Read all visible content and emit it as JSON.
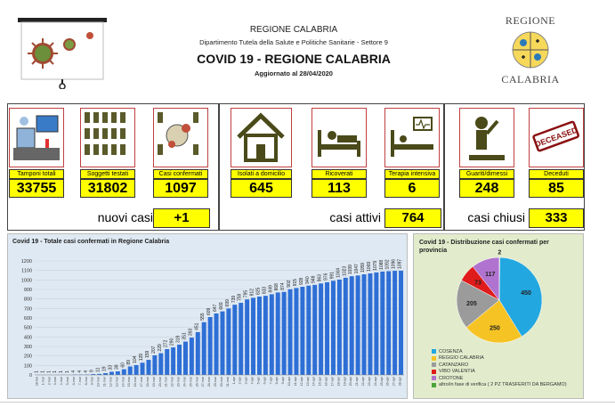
{
  "header": {
    "region": "REGIONE CALABRIA",
    "department": "Dipartimento Tutela della Salute e Politiche Sanitarie - Settore 9",
    "title": "COVID 19 - REGIONE CALABRIA",
    "updated": "Aggiornato al  28/04/2020",
    "logo_top": "REGIONE",
    "logo_bottom": "CALABRIA"
  },
  "stats": [
    {
      "label": "Tamponi totali",
      "value": "33755",
      "icon": "lab-computer-icon"
    },
    {
      "label": "Soggetti testati",
      "value": "31802",
      "icon": "people-tested-icon"
    },
    {
      "label": "Casi confermati",
      "value": "1097",
      "icon": "confirmed-cases-icon"
    },
    {
      "label": "Isolati a domicilio",
      "value": "645",
      "icon": "house-icon"
    },
    {
      "label": "Ricoverati",
      "value": "113",
      "icon": "hospital-bed-icon"
    },
    {
      "label": "Terapia intensiva",
      "value": "6",
      "icon": "intensive-care-icon"
    },
    {
      "label": "Guariti/dimessi",
      "value": "248",
      "icon": "recovered-person-icon"
    },
    {
      "label": "Deceduti",
      "value": "85",
      "icon": "deceased-stamp-icon"
    }
  ],
  "summary": {
    "new_label": "nuovi casi",
    "new_value": "+1",
    "active_label": "casi attivi",
    "active_value": "764",
    "closed_label": "casi chiusi",
    "closed_value": "333"
  },
  "colors": {
    "highlight": "#ffff00",
    "bar": "#2e6fd6",
    "chart_bg": "#dfe9f3",
    "pie_bg": "#e2eccc"
  },
  "chart_data": [
    {
      "type": "bar",
      "title": "Covid 19 - Totale casi confermati in Regione Calabria",
      "ylim": [
        0,
        1200
      ],
      "yticks": [
        0,
        100,
        200,
        300,
        400,
        500,
        600,
        700,
        800,
        900,
        1000,
        1100,
        1200
      ],
      "grid": true,
      "categories": [
        "28-feb",
        "1-mar",
        "2-mar",
        "3-mar",
        "4-mar",
        "5-mar",
        "6-mar",
        "7-mar",
        "8-mar",
        "9-mar",
        "10-mar",
        "11-mar",
        "12-mar",
        "13-mar",
        "14-mar",
        "15-mar",
        "16-mar",
        "17-mar",
        "18-mar",
        "19-mar",
        "20-mar",
        "21-mar",
        "22-mar",
        "23-mar",
        "24-mar",
        "25-mar",
        "26-mar",
        "27-mar",
        "28-mar",
        "29-mar",
        "30-mar",
        "31-mar",
        "1-apr",
        "2-apr",
        "3-apr",
        "4-apr",
        "5-apr",
        "6-apr",
        "7-apr",
        "8-apr",
        "9-apr",
        "10-apr",
        "11-apr",
        "12-apr",
        "13-apr",
        "14-apr",
        "15-apr",
        "16-apr",
        "17-apr",
        "18-apr",
        "19-apr",
        "20-apr",
        "21-apr",
        "22-apr",
        "23-apr",
        "24-apr",
        "25-apr",
        "26-apr",
        "27-apr",
        "28-apr"
      ],
      "values": [
        1,
        1,
        1,
        1,
        1,
        1,
        4,
        4,
        4,
        9,
        11,
        19,
        33,
        38,
        60,
        89,
        104,
        129,
        159,
        207,
        229,
        272,
        290,
        319,
        351,
        393,
        451,
        555,
        609,
        647,
        669,
        699,
        739,
        759,
        795,
        812,
        825,
        833,
        849,
        868,
        874,
        902,
        915,
        928,
        940,
        948,
        963,
        976,
        991,
        1004,
        1023,
        1039,
        1047,
        1059,
        1069,
        1079,
        1088,
        1092,
        1096,
        1097
      ]
    },
    {
      "type": "pie",
      "title": "Covid 19 - Distribuzione casi confermati per provincia",
      "series": [
        {
          "name": "COSENZA",
          "value": 450,
          "color": "#22a7e0"
        },
        {
          "name": "REGGIO CALABRIA",
          "value": 250,
          "color": "#f6c324"
        },
        {
          "name": "CATANZARO",
          "value": 205,
          "color": "#9b9b9b"
        },
        {
          "name": "VIBO VALENTIA",
          "value": 73,
          "color": "#e01b1b"
        },
        {
          "name": "CROTONE",
          "value": 117,
          "color": "#b073cf"
        },
        {
          "name": "altro/in fase di verifica ( 2 PZ TRASFERITI DA BERGAMO)",
          "value": 2,
          "color": "#4aa53a"
        }
      ]
    }
  ]
}
